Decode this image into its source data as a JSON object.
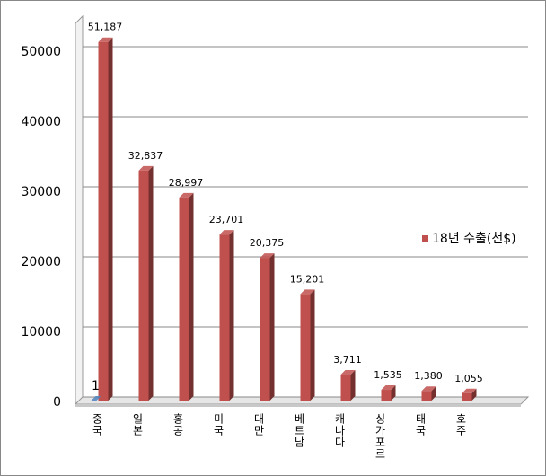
{
  "chart_data": {
    "type": "bar3d",
    "categories": [
      "중국",
      "일본",
      "홍콩",
      "미국",
      "대만",
      "베트남",
      "캐나다",
      "싱가포르",
      "태국",
      "호주"
    ],
    "series": [
      {
        "name": "18년 수출(천$)",
        "color": "#c0504d",
        "values": [
          51187,
          32837,
          28997,
          23701,
          20375,
          15201,
          3711,
          1535,
          1380,
          1055
        ],
        "value_labels": [
          "51,187",
          "32,837",
          "28,997",
          "23,701",
          "20,375",
          "15,201",
          "3,711",
          "1,535",
          "1,380",
          "1,055"
        ]
      },
      {
        "color": "#4f81bd",
        "values": [
          1,
          null,
          null,
          null,
          null,
          null,
          null,
          null,
          null,
          null
        ]
      }
    ],
    "ylim": [
      0,
      55000
    ],
    "yticks": [
      0,
      10000,
      20000,
      30000,
      40000,
      50000
    ],
    "grid": true,
    "legend": "right"
  }
}
